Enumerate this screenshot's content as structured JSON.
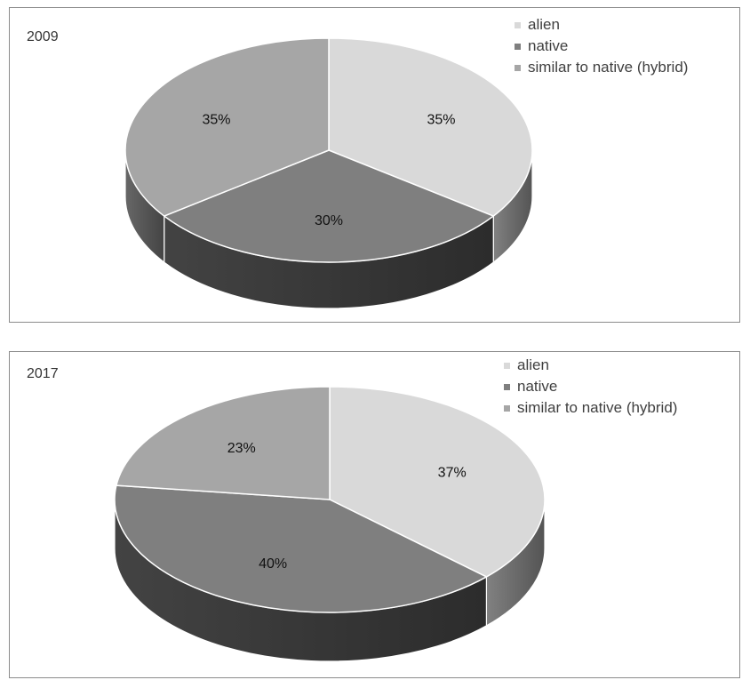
{
  "chart_data": [
    {
      "type": "pie",
      "title": "2009",
      "categories": [
        "alien",
        "native",
        "similar to native (hybrid)"
      ],
      "values": [
        35,
        30,
        35
      ],
      "labels": [
        "35%",
        "30%",
        "35%"
      ],
      "legend": "top-right",
      "colors": [
        "#d9d9d9",
        "#7f7f7f",
        "#a6a6a6"
      ]
    },
    {
      "type": "pie",
      "title": "2017",
      "categories": [
        "alien",
        "native",
        "similar to native (hybrid)"
      ],
      "values": [
        37,
        40,
        23
      ],
      "labels": [
        "37%",
        "40%",
        "23%"
      ],
      "legend": "top-right",
      "colors": [
        "#d9d9d9",
        "#7f7f7f",
        "#a6a6a6"
      ]
    }
  ]
}
